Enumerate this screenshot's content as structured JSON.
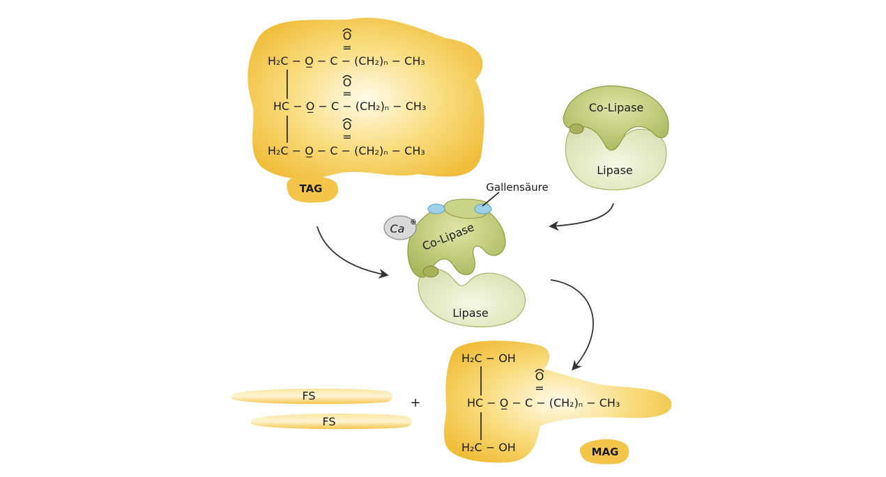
{
  "tag": {
    "label": "TAG",
    "row1_prefix": "H₂C − O̲ − C − (CH₂)ₙ − CH₃",
    "row2_prefix": "HC − O̲ − C − (CH₂)ₙ − CH₃",
    "row3_prefix": "H₂C − O̲ − C − (CH₂)ₙ − CH₃",
    "carbonyl_o": "O",
    "double_bond": "="
  },
  "colipase_free": {
    "top_label": "Co-Lipase",
    "bottom_label": "Lipase"
  },
  "complex": {
    "ca_label": "Ca",
    "ca_charge": "⊕",
    "bile_acid_label": "Gallensäure",
    "colipase_label": "Co-Lipase",
    "lipase_label": "Lipase"
  },
  "fs": {
    "fs1_label": "FS",
    "fs2_label": "FS",
    "plus": "+"
  },
  "mag": {
    "label": "MAG",
    "row1": "H₂C − OH",
    "row2": "HC − O̲ − C − (CH₂)ₙ − CH₃",
    "row3": "H₂C − OH",
    "carbonyl_o": "O",
    "double_bond": "="
  },
  "colors": {
    "fat_yellow": "#f3c54a",
    "fat_yellow_light": "#fbe7a8",
    "enzyme_green": "#b9c46e",
    "enzyme_light": "#e8ecc4",
    "ca_grey": "#cfcfcf",
    "bile_blue": "#9fd0e8"
  }
}
